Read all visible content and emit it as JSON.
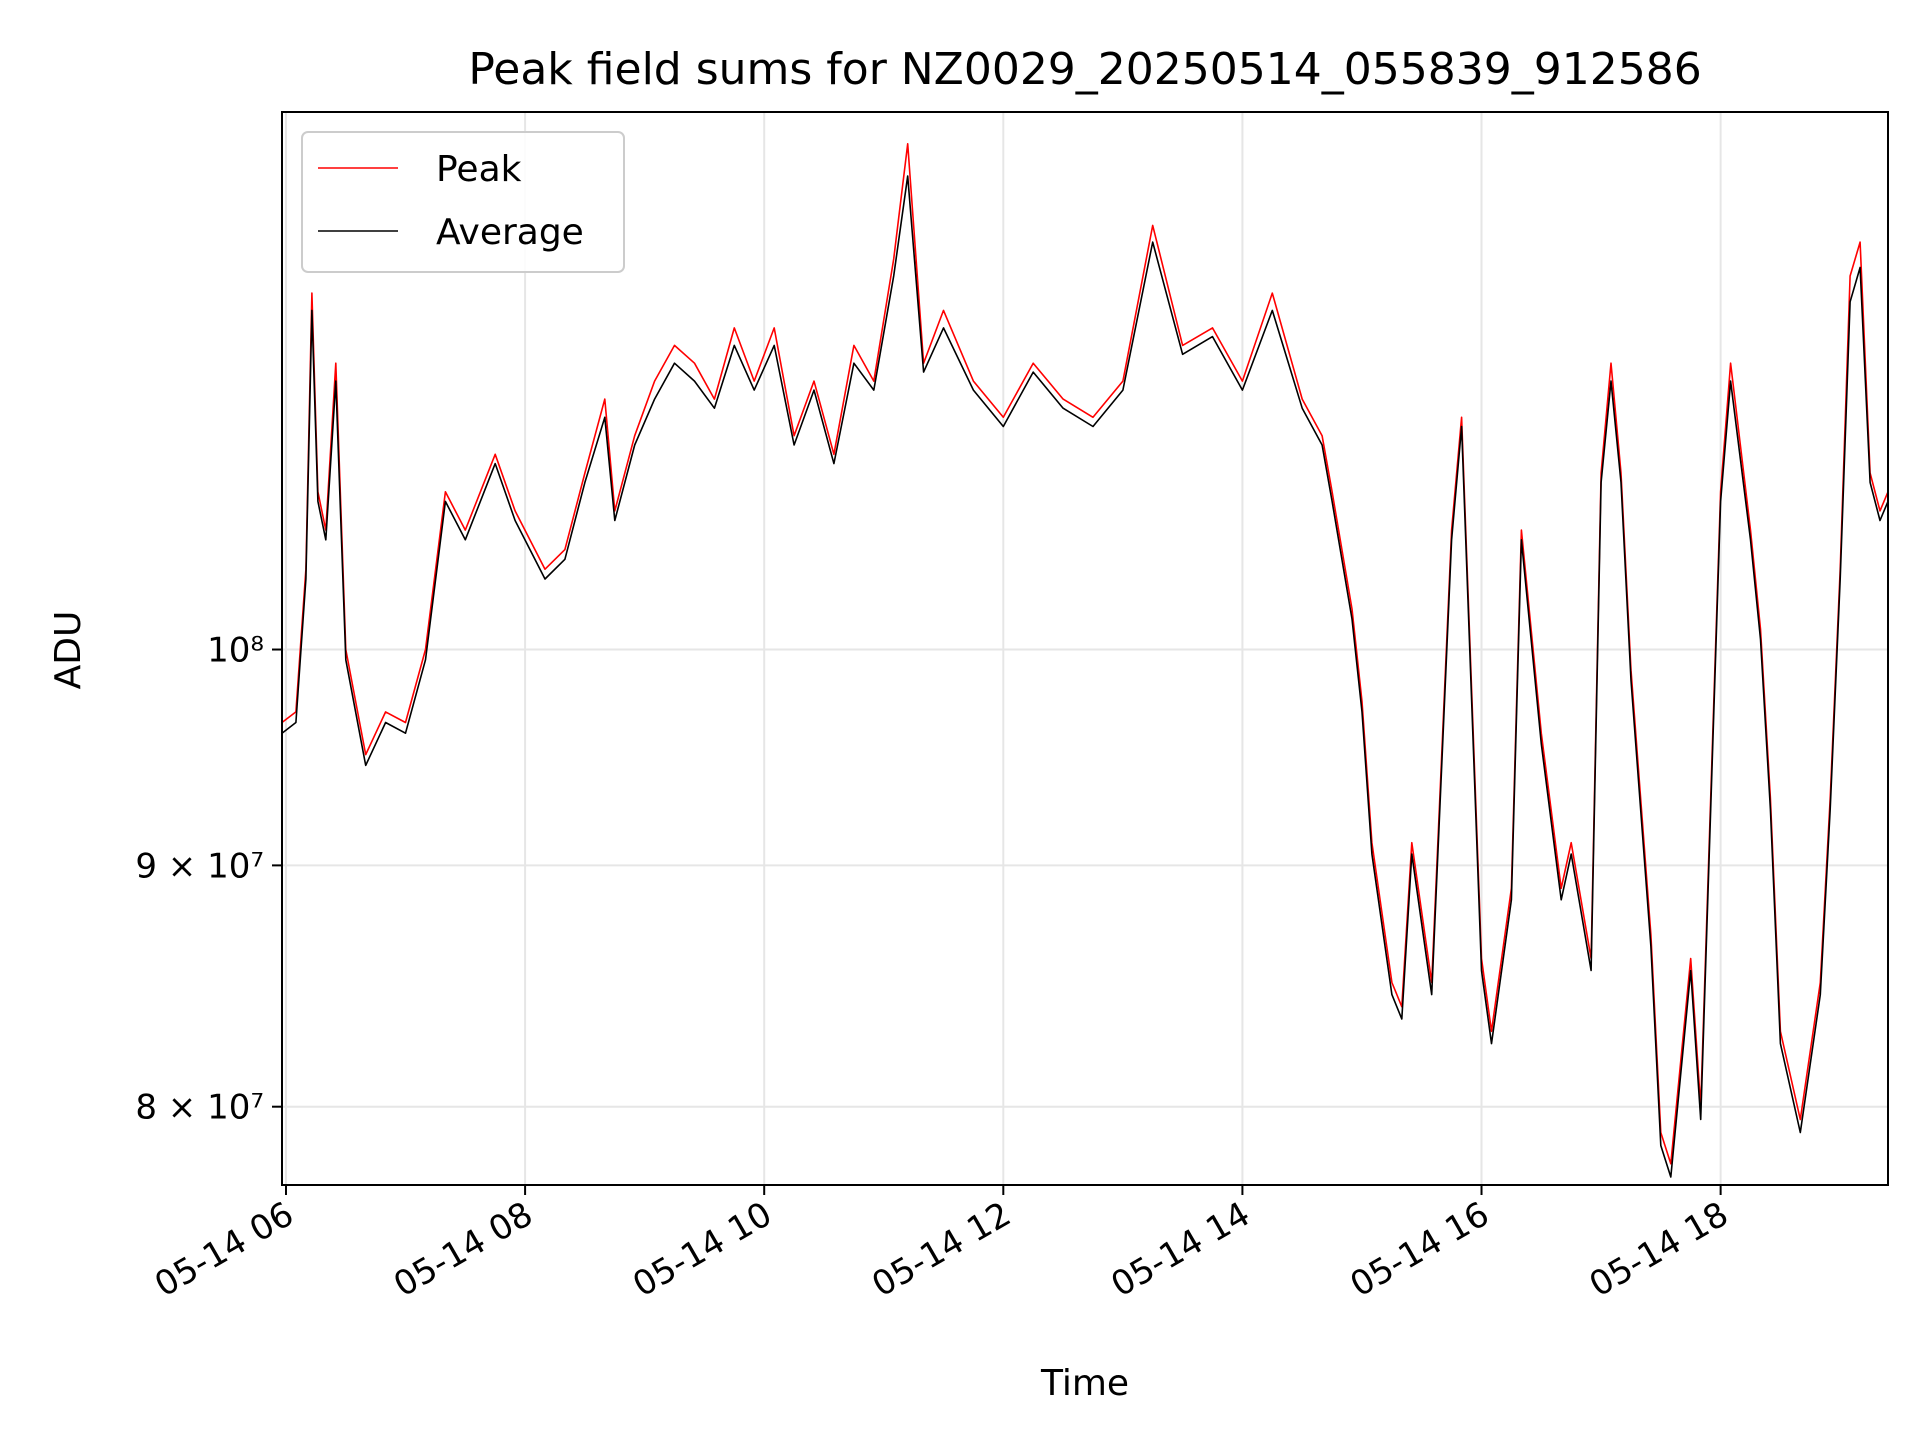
{
  "chart_data": {
    "type": "line",
    "title": "Peak field sums for NZ0029_20250514_055839_912586",
    "xlabel": "Time",
    "ylabel": "ADU",
    "y_scale": "log",
    "xlim": [
      "2025-05-14 05:58",
      "2025-05-14 19:24"
    ],
    "ylim": [
      77000000,
      130000000
    ],
    "x_ticks": [
      {
        "value": "2025-05-14 06:00",
        "label": "05-14 06"
      },
      {
        "value": "2025-05-14 08:00",
        "label": "05-14 08"
      },
      {
        "value": "2025-05-14 10:00",
        "label": "05-14 10"
      },
      {
        "value": "2025-05-14 12:00",
        "label": "05-14 12"
      },
      {
        "value": "2025-05-14 14:00",
        "label": "05-14 14"
      },
      {
        "value": "2025-05-14 16:00",
        "label": "05-14 16"
      },
      {
        "value": "2025-05-14 18:00",
        "label": "05-14 18"
      }
    ],
    "y_ticks": [
      {
        "value": 80000000,
        "label": "8 × 10⁷"
      },
      {
        "value": 90000000,
        "label": "9 × 10⁷"
      },
      {
        "value": 100000000,
        "label": "10⁸"
      }
    ],
    "grid": true,
    "legend_position": "top-left",
    "series": [
      {
        "name": "Peak",
        "color": "#ff0000",
        "x": [
          "2025-05-14 05:58",
          "2025-05-14 06:05",
          "2025-05-14 06:10",
          "2025-05-14 06:13",
          "2025-05-14 06:16",
          "2025-05-14 06:20",
          "2025-05-14 06:25",
          "2025-05-14 06:30",
          "2025-05-14 06:40",
          "2025-05-14 06:50",
          "2025-05-14 07:00",
          "2025-05-14 07:10",
          "2025-05-14 07:20",
          "2025-05-14 07:30",
          "2025-05-14 07:45",
          "2025-05-14 07:55",
          "2025-05-14 08:10",
          "2025-05-14 08:20",
          "2025-05-14 08:30",
          "2025-05-14 08:40",
          "2025-05-14 08:45",
          "2025-05-14 08:55",
          "2025-05-14 09:05",
          "2025-05-14 09:15",
          "2025-05-14 09:25",
          "2025-05-14 09:35",
          "2025-05-14 09:45",
          "2025-05-14 09:55",
          "2025-05-14 10:05",
          "2025-05-14 10:15",
          "2025-05-14 10:25",
          "2025-05-14 10:35",
          "2025-05-14 10:45",
          "2025-05-14 10:55",
          "2025-05-14 11:05",
          "2025-05-14 11:12",
          "2025-05-14 11:20",
          "2025-05-14 11:30",
          "2025-05-14 11:45",
          "2025-05-14 12:00",
          "2025-05-14 12:15",
          "2025-05-14 12:30",
          "2025-05-14 12:45",
          "2025-05-14 13:00",
          "2025-05-14 13:15",
          "2025-05-14 13:30",
          "2025-05-14 13:45",
          "2025-05-14 14:00",
          "2025-05-14 14:15",
          "2025-05-14 14:30",
          "2025-05-14 14:40",
          "2025-05-14 14:45",
          "2025-05-14 14:55",
          "2025-05-14 15:00",
          "2025-05-14 15:05",
          "2025-05-14 15:15",
          "2025-05-14 15:20",
          "2025-05-14 15:25",
          "2025-05-14 15:35",
          "2025-05-14 15:45",
          "2025-05-14 15:50",
          "2025-05-14 16:00",
          "2025-05-14 16:05",
          "2025-05-14 16:15",
          "2025-05-14 16:20",
          "2025-05-14 16:30",
          "2025-05-14 16:40",
          "2025-05-14 16:45",
          "2025-05-14 16:55",
          "2025-05-14 17:00",
          "2025-05-14 17:05",
          "2025-05-14 17:10",
          "2025-05-14 17:15",
          "2025-05-14 17:25",
          "2025-05-14 17:30",
          "2025-05-14 17:35",
          "2025-05-14 17:45",
          "2025-05-14 17:50",
          "2025-05-14 18:00",
          "2025-05-14 18:05",
          "2025-05-14 18:15",
          "2025-05-14 18:20",
          "2025-05-14 18:25",
          "2025-05-14 18:30",
          "2025-05-14 18:40",
          "2025-05-14 18:50",
          "2025-05-14 18:55",
          "2025-05-14 19:00",
          "2025-05-14 19:05",
          "2025-05-14 19:10",
          "2025-05-14 19:15",
          "2025-05-14 19:20",
          "2025-05-14 19:24"
        ],
        "y": [
          96500000,
          97000000,
          104000000,
          119000000,
          108000000,
          106000000,
          115000000,
          100000000,
          95000000,
          97000000,
          96500000,
          100000000,
          108000000,
          106000000,
          110000000,
          107000000,
          104000000,
          105000000,
          109000000,
          113000000,
          107000000,
          111000000,
          114000000,
          116000000,
          115000000,
          113000000,
          117000000,
          114000000,
          117000000,
          111000000,
          114000000,
          110000000,
          116000000,
          114000000,
          121000000,
          128000000,
          115000000,
          118000000,
          114000000,
          112000000,
          115000000,
          113000000,
          112000000,
          114000000,
          123000000,
          116000000,
          117000000,
          114000000,
          119000000,
          113000000,
          111000000,
          108000000,
          102000000,
          97500000,
          91000000,
          85000000,
          84000000,
          91000000,
          85000000,
          106000000,
          112000000,
          86000000,
          83000000,
          89000000,
          106000000,
          96000000,
          89000000,
          91000000,
          86000000,
          109000000,
          115000000,
          109000000,
          99000000,
          87000000,
          79000000,
          77800000,
          86000000,
          80000000,
          108000000,
          115000000,
          106000000,
          101000000,
          93000000,
          83000000,
          79500000,
          85000000,
          93000000,
          104000000,
          120000000,
          122000000,
          109000000,
          107000000,
          108000000
        ]
      },
      {
        "name": "Average",
        "color": "#000000",
        "x": [
          "2025-05-14 05:58",
          "2025-05-14 06:05",
          "2025-05-14 06:10",
          "2025-05-14 06:13",
          "2025-05-14 06:16",
          "2025-05-14 06:20",
          "2025-05-14 06:25",
          "2025-05-14 06:30",
          "2025-05-14 06:40",
          "2025-05-14 06:50",
          "2025-05-14 07:00",
          "2025-05-14 07:10",
          "2025-05-14 07:20",
          "2025-05-14 07:30",
          "2025-05-14 07:45",
          "2025-05-14 07:55",
          "2025-05-14 08:10",
          "2025-05-14 08:20",
          "2025-05-14 08:30",
          "2025-05-14 08:40",
          "2025-05-14 08:45",
          "2025-05-14 08:55",
          "2025-05-14 09:05",
          "2025-05-14 09:15",
          "2025-05-14 09:25",
          "2025-05-14 09:35",
          "2025-05-14 09:45",
          "2025-05-14 09:55",
          "2025-05-14 10:05",
          "2025-05-14 10:15",
          "2025-05-14 10:25",
          "2025-05-14 10:35",
          "2025-05-14 10:45",
          "2025-05-14 10:55",
          "2025-05-14 11:05",
          "2025-05-14 11:12",
          "2025-05-14 11:20",
          "2025-05-14 11:30",
          "2025-05-14 11:45",
          "2025-05-14 12:00",
          "2025-05-14 12:15",
          "2025-05-14 12:30",
          "2025-05-14 12:45",
          "2025-05-14 13:00",
          "2025-05-14 13:15",
          "2025-05-14 13:30",
          "2025-05-14 13:45",
          "2025-05-14 14:00",
          "2025-05-14 14:15",
          "2025-05-14 14:30",
          "2025-05-14 14:40",
          "2025-05-14 14:45",
          "2025-05-14 14:55",
          "2025-05-14 15:00",
          "2025-05-14 15:05",
          "2025-05-14 15:15",
          "2025-05-14 15:20",
          "2025-05-14 15:25",
          "2025-05-14 15:35",
          "2025-05-14 15:45",
          "2025-05-14 15:50",
          "2025-05-14 16:00",
          "2025-05-14 16:05",
          "2025-05-14 16:15",
          "2025-05-14 16:20",
          "2025-05-14 16:30",
          "2025-05-14 16:40",
          "2025-05-14 16:45",
          "2025-05-14 16:55",
          "2025-05-14 17:00",
          "2025-05-14 17:05",
          "2025-05-14 17:10",
          "2025-05-14 17:15",
          "2025-05-14 17:25",
          "2025-05-14 17:30",
          "2025-05-14 17:35",
          "2025-05-14 17:45",
          "2025-05-14 17:50",
          "2025-05-14 18:00",
          "2025-05-14 18:05",
          "2025-05-14 18:15",
          "2025-05-14 18:20",
          "2025-05-14 18:25",
          "2025-05-14 18:30",
          "2025-05-14 18:40",
          "2025-05-14 18:50",
          "2025-05-14 18:55",
          "2025-05-14 19:00",
          "2025-05-14 19:05",
          "2025-05-14 19:10",
          "2025-05-14 19:15",
          "2025-05-14 19:20",
          "2025-05-14 19:24"
        ],
        "y": [
          96000000,
          96500000,
          103500000,
          118000000,
          107500000,
          105500000,
          114000000,
          99500000,
          94500000,
          96500000,
          96000000,
          99500000,
          107500000,
          105500000,
          109500000,
          106500000,
          103500000,
          104500000,
          108500000,
          112000000,
          106500000,
          110500000,
          113000000,
          115000000,
          114000000,
          112500000,
          116000000,
          113500000,
          116000000,
          110500000,
          113500000,
          109500000,
          115000000,
          113500000,
          120000000,
          126000000,
          114500000,
          117000000,
          113500000,
          111500000,
          114500000,
          112500000,
          111500000,
          113500000,
          122000000,
          115500000,
          116500000,
          113500000,
          118000000,
          112500000,
          110500000,
          107500000,
          101500000,
          97000000,
          90500000,
          84500000,
          83500000,
          90500000,
          84500000,
          105500000,
          111500000,
          85500000,
          82500000,
          88500000,
          105500000,
          95500000,
          88500000,
          90500000,
          85500000,
          108500000,
          114000000,
          108500000,
          98500000,
          86500000,
          78500000,
          77300000,
          85500000,
          79500000,
          107500000,
          114000000,
          105500000,
          100500000,
          92500000,
          82500000,
          79000000,
          84500000,
          92500000,
          103500000,
          118500000,
          120500000,
          108500000,
          106500000,
          107500000
        ]
      }
    ]
  }
}
